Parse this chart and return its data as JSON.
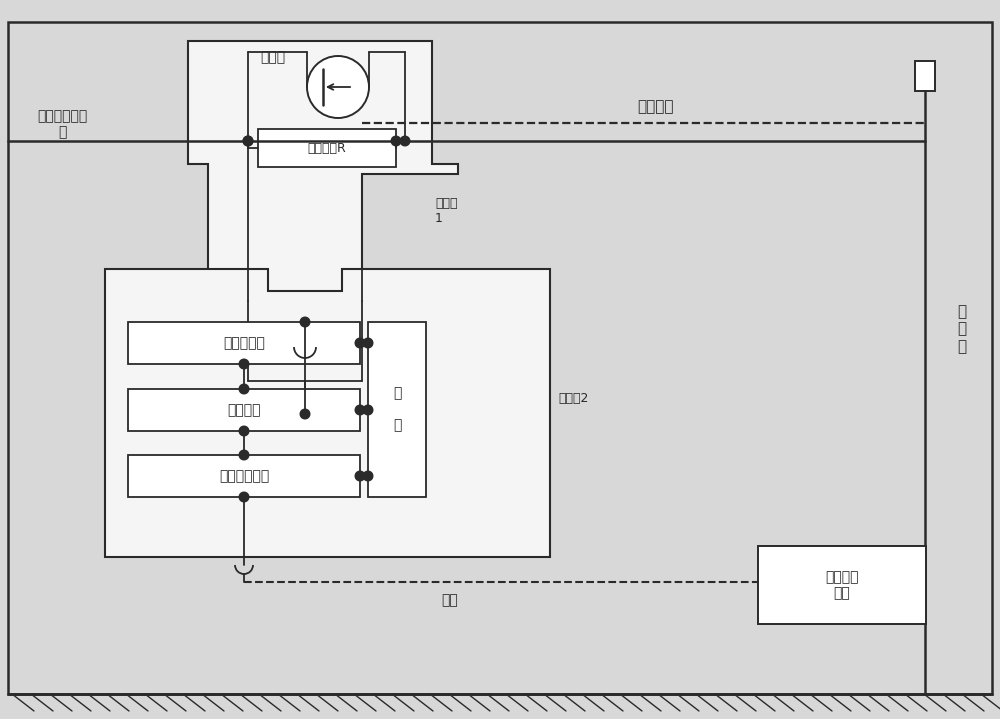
{
  "bg_color": "#d8d8d8",
  "line_color": "#2a2a2a",
  "box_fill": "#ffffff",
  "area_fill": "#f2f2f2",
  "fig_w": 10.0,
  "fig_h": 7.19,
  "labels": {
    "hv_source": "接高压直流电\n源",
    "fangdianguan": "放电管",
    "quyangzukang": "取样电阻R",
    "shielding_box1": "屏蔽箱\n1",
    "moni_line": "模拟线路",
    "data_collect": "数据采集卡",
    "measure_host": "测量主机",
    "signal_convert": "信号转换装置",
    "battery": "电\n\n池",
    "shielding_box2": "屏蔽箱2",
    "optical_fiber": "光纤",
    "ground_control": "地面控制\n主机",
    "insulation_rod": "绝\n缘\n棒"
  }
}
